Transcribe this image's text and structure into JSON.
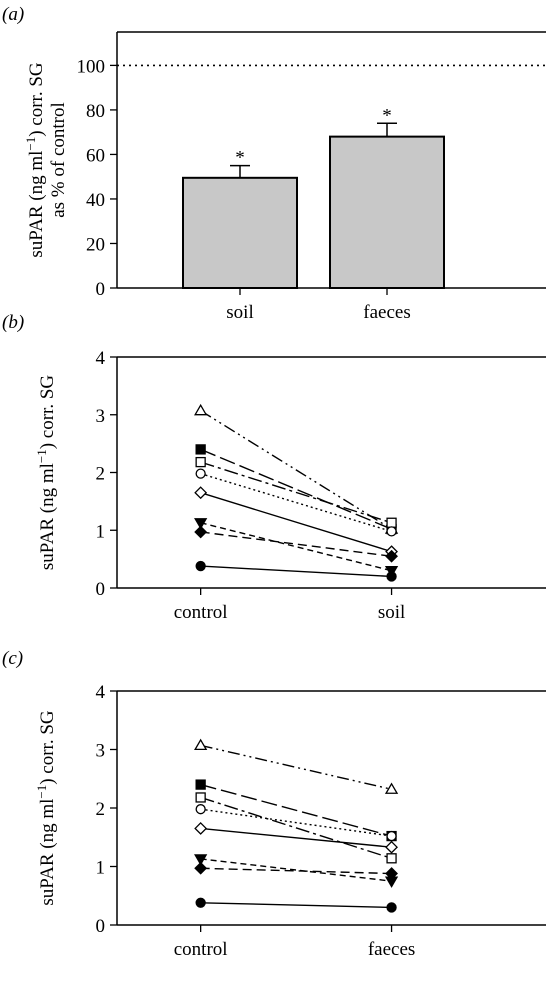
{
  "chart_data": [
    {
      "type": "bar",
      "panel_label": "(a)",
      "ylabel": {
        "before": "suPAR (ng ml",
        "sup": "−1",
        "after": ") corr. SG",
        "line2": "as % of control"
      },
      "categories": [
        "soil",
        "faeces"
      ],
      "values": [
        49.5,
        68
      ],
      "errors": [
        5.5,
        6
      ],
      "annotations": [
        "*",
        "*"
      ],
      "color": "#c8c8c8",
      "ylim": [
        0,
        115
      ],
      "yticks": [
        0,
        20,
        40,
        60,
        80,
        100
      ],
      "hline": 100
    },
    {
      "type": "line",
      "panel_label": "(b)",
      "ylabel": {
        "before": "suPAR (ng ml",
        "sup": "−1",
        "after": ") corr. SG"
      },
      "categories": [
        "control",
        "soil"
      ],
      "ylim": [
        0,
        4
      ],
      "yticks": [
        0,
        1,
        2,
        3,
        4
      ],
      "series": [
        {
          "color": "#000000",
          "marker": "triangle-up",
          "filled": false,
          "dash": "dashdotdot",
          "values": [
            3.07,
            1.02
          ]
        },
        {
          "color": "#000000",
          "marker": "square",
          "filled": true,
          "dash": "longdash",
          "values": [
            2.4,
            1.02
          ]
        },
        {
          "color": "#000000",
          "marker": "square",
          "filled": false,
          "dash": "dashdot",
          "values": [
            2.18,
            1.13
          ]
        },
        {
          "color": "#000000",
          "marker": "circle",
          "filled": false,
          "dash": "dotted",
          "values": [
            1.98,
            0.98
          ]
        },
        {
          "color": "#000000",
          "marker": "diamond",
          "filled": false,
          "dash": "solid",
          "values": [
            1.65,
            0.63
          ]
        },
        {
          "color": "#000000",
          "marker": "triangle-down",
          "filled": true,
          "dash": "shortdash",
          "values": [
            1.13,
            0.3
          ]
        },
        {
          "color": "#000000",
          "marker": "diamond",
          "filled": true,
          "dash": "dashed",
          "values": [
            0.97,
            0.55
          ]
        },
        {
          "color": "#000000",
          "marker": "circle",
          "filled": true,
          "dash": "solid",
          "values": [
            0.38,
            0.2
          ]
        }
      ]
    },
    {
      "type": "line",
      "panel_label": "(c)",
      "ylabel": {
        "before": "suPAR (ng ml",
        "sup": "−1",
        "after": ") corr. SG"
      },
      "categories": [
        "control",
        "faeces"
      ],
      "ylim": [
        0,
        4
      ],
      "yticks": [
        0,
        1,
        2,
        3,
        4
      ],
      "series": [
        {
          "color": "#000000",
          "marker": "triangle-up",
          "filled": false,
          "dash": "dashdotdot",
          "values": [
            3.07,
            2.32
          ]
        },
        {
          "color": "#000000",
          "marker": "square",
          "filled": true,
          "dash": "longdash",
          "values": [
            2.4,
            1.52
          ]
        },
        {
          "color": "#000000",
          "marker": "square",
          "filled": false,
          "dash": "dashdot",
          "values": [
            2.18,
            1.14
          ]
        },
        {
          "color": "#000000",
          "marker": "circle",
          "filled": false,
          "dash": "dotted",
          "values": [
            1.98,
            1.52
          ]
        },
        {
          "color": "#000000",
          "marker": "diamond",
          "filled": false,
          "dash": "solid",
          "values": [
            1.65,
            1.33
          ]
        },
        {
          "color": "#000000",
          "marker": "triangle-down",
          "filled": true,
          "dash": "shortdash",
          "values": [
            1.13,
            0.75
          ]
        },
        {
          "color": "#000000",
          "marker": "diamond",
          "filled": true,
          "dash": "dashed",
          "values": [
            0.97,
            0.88
          ]
        },
        {
          "color": "#000000",
          "marker": "circle",
          "filled": true,
          "dash": "solid",
          "values": [
            0.38,
            0.3
          ]
        }
      ]
    }
  ]
}
